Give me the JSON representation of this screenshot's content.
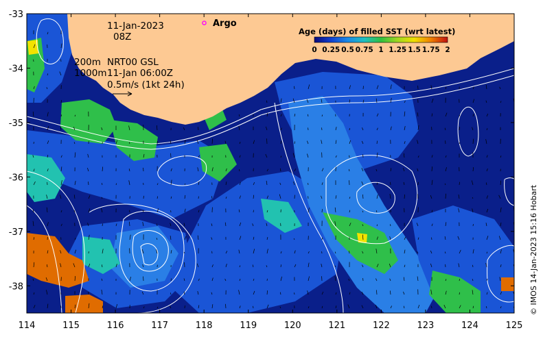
{
  "map": {
    "lon_range": [
      114,
      125
    ],
    "lat_range": [
      -38.5,
      -33
    ],
    "x_ticks": [
      114,
      115,
      116,
      117,
      118,
      119,
      120,
      121,
      122,
      123,
      124,
      125
    ],
    "y_ticks": [
      -33,
      -34,
      -35,
      -36,
      -37,
      -38
    ],
    "x_tick_labels": [
      "114",
      "115",
      "116",
      "117",
      "118",
      "119",
      "120",
      "121",
      "122",
      "123",
      "124",
      "125"
    ],
    "y_tick_labels": [
      "-33",
      "-34",
      "-35",
      "-36",
      "-37",
      "-38"
    ],
    "colors": {
      "land": "#fdc993",
      "ocean_deep": "#0a1f8a",
      "ocean_blue": "#1a55d6",
      "ocean_mid": "#2a7fe6",
      "green": "#2fbf4a",
      "cyan": "#22c2b0",
      "yellow": "#f2e300",
      "orange": "#e06c00",
      "contour": "#ffffff"
    }
  },
  "date": {
    "day": "11-Jan-2023",
    "hour": "08Z"
  },
  "argo": {
    "label": "Argo",
    "marker_color": "#ff00ff"
  },
  "contours_note": {
    "line1_left": "200m",
    "line1_right": "NRT00 GSL",
    "line2_left": "1000m",
    "line2_right": "11-Jan 06:00Z",
    "scale_label": "0.5m/s (1kt 24h)"
  },
  "legend": {
    "title": "Age (days) of filled SST (wrt latest)",
    "ticks": [
      "0",
      "0.25",
      "0.5",
      "0.75",
      "1",
      "1.25",
      "1.5",
      "1.75",
      "2"
    ],
    "colorbar": [
      "#0a0a7a",
      "#1040d0",
      "#1a8ae8",
      "#20c0c0",
      "#30c040",
      "#a0d820",
      "#f0e000",
      "#f08000",
      "#c01010"
    ]
  },
  "copyright": "© IMOS 14-Jan-2023 15:16 Hobart"
}
